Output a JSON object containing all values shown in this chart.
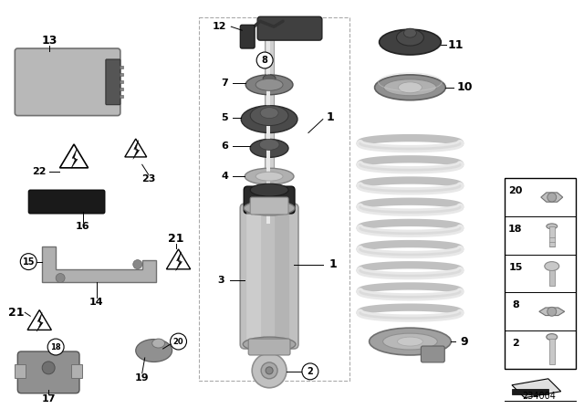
{
  "background_color": "#ffffff",
  "diagram_id": "234004",
  "gray_light": "#c8c8c8",
  "gray_mid": "#a8a8a8",
  "gray_dark": "#707070",
  "gray_darker": "#505050",
  "black": "#1a1a1a",
  "white": "#f8f8f8",
  "border_gray": "#999999"
}
